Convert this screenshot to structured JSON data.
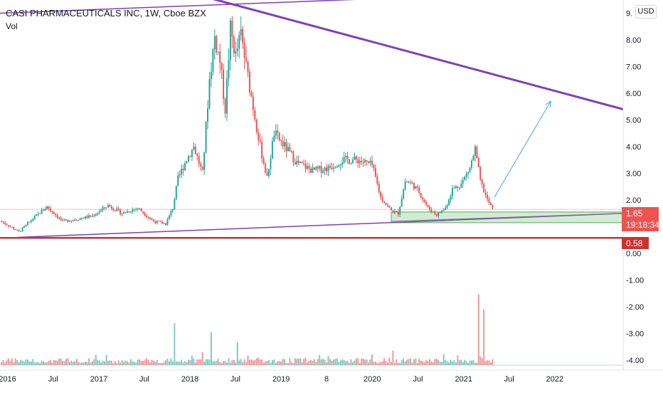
{
  "legend": {
    "title": "CASI PHARMACEUTICALS INC, 1W, Cboe BZX",
    "volume_label": "Vol",
    "currency": "USD"
  },
  "price_axis": {
    "ticks": [
      "9.",
      "8.00",
      "7.00",
      "6.00",
      "5.00",
      "4.00",
      "3.00",
      "2.00",
      "1.00",
      "0.00",
      "-1.00",
      "-2.00",
      "-3.00",
      "-4.00"
    ]
  },
  "labels": {
    "last_price": "1.65",
    "countdown": "19:18:34",
    "support_level": "0.58"
  },
  "time_axis": {
    "ticks": [
      "2016",
      "Jul",
      "2017",
      "Jul",
      "2018",
      "Jul",
      "2019",
      "8",
      "2020",
      "Jul",
      "2021",
      "Jul",
      "2022"
    ]
  },
  "colors": {
    "up": "#26a69a",
    "down": "#ef5350",
    "trendline": "#7e3fbf",
    "support": "#d32f2f",
    "projection": "#42a5f5",
    "zone_fill": "#c8e6c9",
    "zone_border": "#4caf50"
  },
  "chart_data": {
    "type": "candlestick",
    "interval": "1W",
    "x_range": [
      "2015-12-01",
      "2022-10-01"
    ],
    "y_price_range": [
      -4.0,
      9.3
    ],
    "volume_pane": true,
    "price_path": [
      [
        "2015-12-07",
        1.2
      ],
      [
        "2016-02-15",
        0.8
      ],
      [
        "2016-04-11",
        1.3
      ],
      [
        "2016-06-06",
        1.75
      ],
      [
        "2016-08-08",
        1.2
      ],
      [
        "2016-10-10",
        1.3
      ],
      [
        "2016-12-05",
        1.4
      ],
      [
        "2017-02-06",
        1.8
      ],
      [
        "2017-04-03",
        1.5
      ],
      [
        "2017-06-05",
        1.7
      ],
      [
        "2017-08-07",
        1.2
      ],
      [
        "2017-09-25",
        1.1
      ],
      [
        "2017-10-23",
        1.7
      ],
      [
        "2017-11-13",
        2.8
      ],
      [
        "2017-12-11",
        3.4
      ],
      [
        "2018-01-15",
        4.0
      ],
      [
        "2018-02-19",
        3.0
      ],
      [
        "2018-03-19",
        6.5
      ],
      [
        "2018-04-09",
        8.1
      ],
      [
        "2018-04-30",
        7.2
      ],
      [
        "2018-05-21",
        5.4
      ],
      [
        "2018-06-11",
        8.4
      ],
      [
        "2018-07-02",
        7.4
      ],
      [
        "2018-07-23",
        8.2
      ],
      [
        "2018-08-13",
        7.0
      ],
      [
        "2018-09-10",
        5.5
      ],
      [
        "2018-10-08",
        4.0
      ],
      [
        "2018-11-05",
        2.8
      ],
      [
        "2018-12-03",
        4.5
      ],
      [
        "2019-01-07",
        4.1
      ],
      [
        "2019-03-04",
        3.4
      ],
      [
        "2019-05-06",
        3.1
      ],
      [
        "2019-07-08",
        3.2
      ],
      [
        "2019-09-02",
        3.5
      ],
      [
        "2019-11-04",
        3.5
      ],
      [
        "2019-12-30",
        3.3
      ],
      [
        "2020-02-03",
        2.1
      ],
      [
        "2020-03-16",
        1.6
      ],
      [
        "2020-04-13",
        1.5
      ],
      [
        "2020-05-11",
        2.7
      ],
      [
        "2020-06-08",
        2.6
      ],
      [
        "2020-07-06",
        2.3
      ],
      [
        "2020-08-10",
        1.7
      ],
      [
        "2020-09-14",
        1.45
      ],
      [
        "2020-10-19",
        1.7
      ],
      [
        "2020-11-16",
        2.4
      ],
      [
        "2020-12-21",
        2.6
      ],
      [
        "2021-01-25",
        3.2
      ],
      [
        "2021-02-15",
        3.9
      ],
      [
        "2021-03-08",
        2.7
      ],
      [
        "2021-04-05",
        2.0
      ],
      [
        "2021-04-26",
        1.65
      ]
    ],
    "volume_spikes": [
      [
        "2017-10-30",
        0.42
      ],
      [
        "2018-03-26",
        0.33
      ],
      [
        "2018-07-09",
        0.23
      ],
      [
        "2021-03-01",
        0.71
      ],
      [
        "2021-03-22",
        0.56
      ]
    ],
    "last_price": 1.65,
    "support_level": 0.58,
    "trendlines": [
      {
        "name": "upper",
        "from": [
          "2015-12-01",
          9.0
        ],
        "to": [
          "2022-10-01",
          9.9
        ]
      },
      {
        "name": "descending",
        "from": [
          "2017-07-10",
          10.2
        ],
        "to": [
          "2022-10-01",
          5.4
        ]
      },
      {
        "name": "rising",
        "from": [
          "2016-02-08",
          0.6
        ],
        "to": [
          "2022-10-01",
          1.5
        ]
      }
    ],
    "projection": {
      "from": [
        "2021-05-03",
        2.1
      ],
      "to": [
        "2021-12-15",
        5.7
      ]
    },
    "zone": {
      "from_date": "2020-03-16",
      "to_date": "2022-10-01",
      "low": 1.15,
      "high": 1.55
    }
  }
}
